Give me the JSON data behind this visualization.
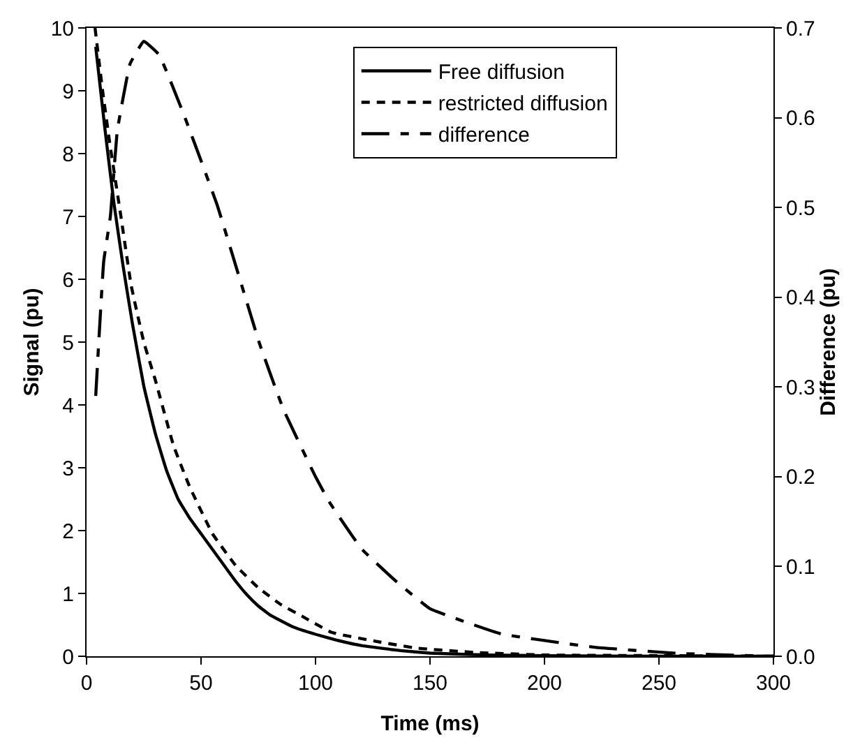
{
  "chart_data": {
    "type": "line",
    "xlabel": "Time (ms)",
    "ylabel": "Signal (pu)",
    "y2label": "Difference (pu)",
    "xlim": [
      0,
      300
    ],
    "xticks": [
      0,
      50,
      100,
      150,
      200,
      250,
      300
    ],
    "ylim": [
      0,
      10
    ],
    "yticks": [
      0,
      1,
      2,
      3,
      4,
      5,
      6,
      7,
      8,
      9,
      10
    ],
    "y2lim": [
      0,
      0.7
    ],
    "y2ticks": [
      {
        "value": 0,
        "label": "0.0"
      },
      0.1,
      0.2,
      0.3,
      0.4,
      0.5,
      0.6,
      0.7
    ],
    "legend": "top",
    "marker": "none",
    "series": [
      {
        "name": "Free diffusion",
        "color": "#000000",
        "line_style": "solid",
        "x": [
          4,
          8,
          12,
          16,
          20,
          25,
          30,
          35,
          40,
          45,
          50,
          55,
          60,
          65,
          70,
          75,
          80,
          90,
          100,
          110,
          120,
          137,
          150,
          175,
          200,
          250,
          300
        ],
        "values": [
          9.7,
          8.4,
          7.2,
          6.2,
          5.3,
          4.3,
          3.55,
          2.95,
          2.5,
          2.2,
          1.95,
          1.7,
          1.45,
          1.2,
          0.98,
          0.8,
          0.66,
          0.47,
          0.35,
          0.25,
          0.17,
          0.09,
          0.05,
          0.02,
          0.01,
          0,
          0
        ]
      },
      {
        "name": "restricted diffusion",
        "color": "#000000",
        "line_style": "dotted",
        "x": [
          3.7,
          7,
          10,
          15,
          19.5,
          25,
          30,
          38,
          45,
          55,
          65,
          75,
          85,
          94,
          107,
          126,
          144,
          170,
          200,
          250,
          300
        ],
        "values": [
          10,
          9,
          8.2,
          7,
          5.9,
          5,
          4.4,
          3.35,
          2.7,
          1.95,
          1.45,
          1.09,
          0.82,
          0.64,
          0.38,
          0.24,
          0.13,
          0.06,
          0.02,
          0.01,
          0
        ]
      },
      {
        "name": "difference",
        "color": "#000000",
        "line_style": "dashed",
        "axis": "y2",
        "x": [
          4,
          7.5,
          10.4,
          13.4,
          19,
          25,
          31.7,
          43,
          57,
          75.6,
          86,
          100,
          106,
          120,
          135,
          150,
          181,
          222,
          260,
          300
        ],
        "values": [
          0.29,
          0.44,
          0.49,
          0.585,
          0.66,
          0.685,
          0.67,
          0.6,
          0.503,
          0.348,
          0.275,
          0.2,
          0.172,
          0.12,
          0.084,
          0.053,
          0.025,
          0.01,
          0.003,
          0
        ]
      }
    ]
  }
}
